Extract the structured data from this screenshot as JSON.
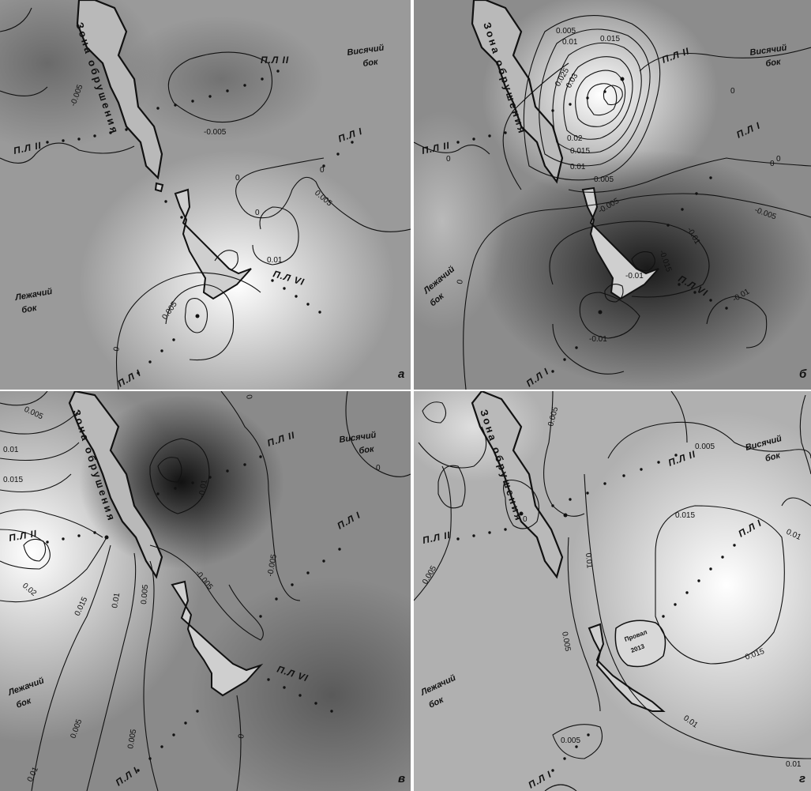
{
  "panels": [
    {
      "letter": "а",
      "profiles": [
        "П.Л II",
        "П.Л II",
        "П.Л I",
        "П.Л VI",
        "П.Л I"
      ],
      "sides": {
        "hanging_1": "Висячий",
        "hanging_2": "бок",
        "lying_1": "Лежачий",
        "lying_2": "бок"
      },
      "zone_label": "Зона обрушения",
      "contour_labels": [
        "-0.005",
        "-0.005",
        "0",
        "0",
        "0.005",
        "0",
        "0.01",
        "0.005",
        "0"
      ]
    },
    {
      "letter": "б",
      "profiles": [
        "П.Л II",
        "П.Л II",
        "П.Л I",
        "П.Л VI",
        "П.Л I"
      ],
      "sides": {
        "hanging_1": "Висячий",
        "hanging_2": "бок",
        "lying_1": "Лежачий",
        "lying_2": "бок"
      },
      "zone_label": "Зона обрушения",
      "contour_labels": [
        "0.005",
        "0.01",
        "0.015",
        "0.025",
        "0.03",
        "0.02",
        "0.015",
        "0.01",
        "0.005",
        "0",
        "0",
        "0",
        "-0.005",
        "-0.005",
        "-0.01",
        "-0.015",
        "-0.01",
        "-0.01",
        "-0.01",
        "0",
        "0"
      ]
    },
    {
      "letter": "в",
      "profiles": [
        "П.Л II",
        "П.Л II",
        "П.Л I",
        "П.Л VI",
        "П.Л I"
      ],
      "sides": {
        "hanging_1": "Висячий",
        "hanging_2": "бок",
        "lying_1": "Лежачий",
        "lying_2": "бок"
      },
      "zone_label": "Зона обрушения",
      "contour_labels": [
        "0.005",
        "0.01",
        "0.015",
        "0.02",
        "0.015",
        "0.01",
        "0.005",
        "0.005",
        "0.01",
        "0.005",
        "-0.01",
        "-0.005",
        "-0.005",
        "0",
        "0",
        "0"
      ]
    },
    {
      "letter": "г",
      "profiles": [
        "П.Л II",
        "П.Л II",
        "П.Л I",
        "П.Л I"
      ],
      "sides": {
        "hanging_1": "Висячий",
        "hanging_2": "бок",
        "lying_1": "Лежачий",
        "lying_2": "бок"
      },
      "zone_label": "Зона обрушения",
      "sinkhole_1": "Провал",
      "sinkhole_2": "2013",
      "contour_labels": [
        "0.005",
        "0.005",
        "0.01",
        "0.015",
        "0.015",
        "0.01",
        "0.01",
        "0.005",
        "0.005",
        "0.01",
        "0.005",
        "0"
      ]
    }
  ],
  "colors": {
    "background_light": "#f4f4f4",
    "background_dark": "#1a1a1a",
    "contour": "#111111"
  }
}
